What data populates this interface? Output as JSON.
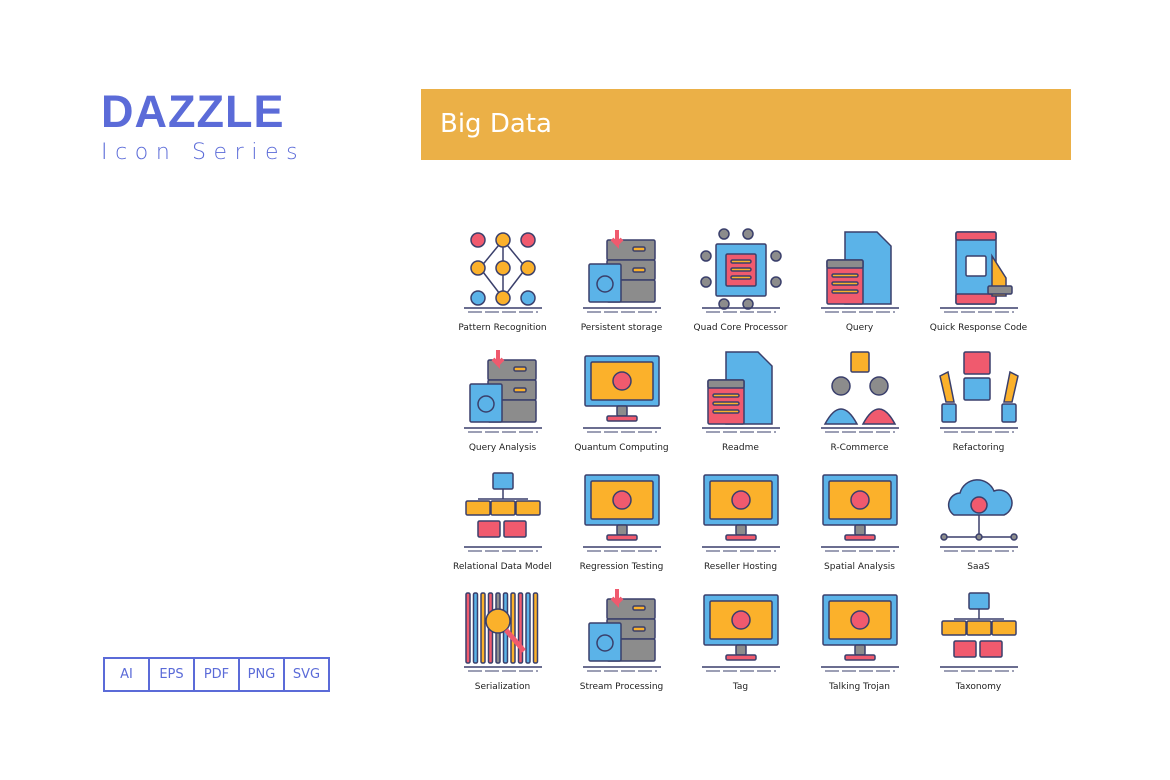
{
  "brand": {
    "title": "DAZZLE",
    "subtitle": "Icon Series"
  },
  "banner": {
    "title": "Big Data",
    "color": "#ebb047"
  },
  "formats": [
    "AI",
    "EPS",
    "PDF",
    "PNG",
    "SVG"
  ],
  "colors": {
    "brand": "#5b6bd8",
    "red": "#f05a6e",
    "orange": "#fbb12b",
    "blue": "#5bb3e8",
    "grey": "#8c8c8c",
    "outline": "#3a3f6b"
  },
  "icons": [
    {
      "label": "Pattern Recognition",
      "icon": "node-network-icon",
      "kind": "nodes"
    },
    {
      "label": "Persistent storage",
      "icon": "storage-server-icon",
      "kind": "server"
    },
    {
      "label": "Quad Core Processor",
      "icon": "processor-chip-icon",
      "kind": "chip"
    },
    {
      "label": "Query",
      "icon": "query-document-icon",
      "kind": "doc"
    },
    {
      "label": "Quick Response Code",
      "icon": "qr-phone-icon",
      "kind": "phone"
    },
    {
      "label": "Query Analysis",
      "icon": "server-search-icon",
      "kind": "server"
    },
    {
      "label": "Quantum Computing",
      "icon": "atom-monitor-icon",
      "kind": "monitor"
    },
    {
      "label": "Readme",
      "icon": "info-document-icon",
      "kind": "doc"
    },
    {
      "label": "R-Commerce",
      "icon": "people-exchange-icon",
      "kind": "people"
    },
    {
      "label": "Refactoring",
      "icon": "hands-documents-icon",
      "kind": "hands"
    },
    {
      "label": "Relational Data Model",
      "icon": "relational-blocks-icon",
      "kind": "blocks"
    },
    {
      "label": "Regression Testing",
      "icon": "gear-monitor-icon",
      "kind": "monitor"
    },
    {
      "label": "Reseller Hosting",
      "icon": "hosting-monitor-icon",
      "kind": "monitor"
    },
    {
      "label": "Spatial Analysis",
      "icon": "map-monitor-icon",
      "kind": "monitor"
    },
    {
      "label": "SaaS",
      "icon": "cloud-gear-icon",
      "kind": "cloud"
    },
    {
      "label": "Serialization",
      "icon": "barcode-search-icon",
      "kind": "bars"
    },
    {
      "label": "Stream Processing",
      "icon": "stream-servers-icon",
      "kind": "server"
    },
    {
      "label": "Tag",
      "icon": "tag-monitor-icon",
      "kind": "monitor"
    },
    {
      "label": "Talking Trojan",
      "icon": "bug-monitor-icon",
      "kind": "monitor"
    },
    {
      "label": "Taxonomy",
      "icon": "taxonomy-tree-icon",
      "kind": "blocks"
    }
  ]
}
